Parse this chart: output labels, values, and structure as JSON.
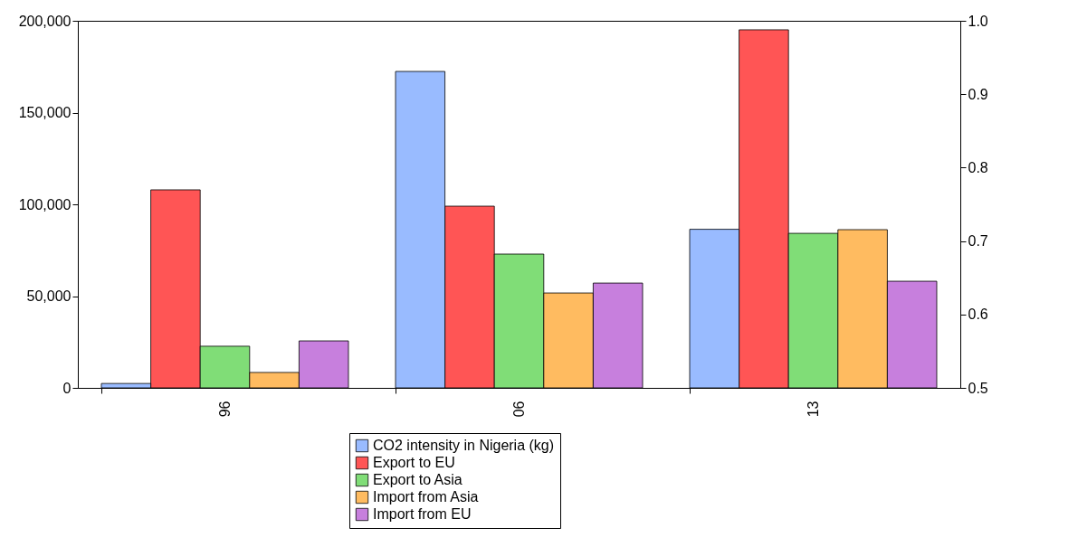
{
  "chart_data": {
    "type": "bar",
    "categories": [
      "96",
      "06",
      "13"
    ],
    "series": [
      {
        "name": "CO2 intensity in Nigeria (kg)",
        "color": "#99bbff",
        "axis": "y2",
        "values": [
          0.506,
          0.931,
          0.716
        ]
      },
      {
        "name": "Export to EU",
        "color": "#ff5555",
        "values": [
          107900,
          99000,
          195100
        ]
      },
      {
        "name": "Export to Asia",
        "color": "#80dd77",
        "values": [
          22700,
          72900,
          84200
        ]
      },
      {
        "name": "Import from Asia",
        "color": "#ffbb60",
        "values": [
          8400,
          51700,
          86200
        ]
      },
      {
        "name": "Import from EU",
        "color": "#c77fdd",
        "values": [
          25600,
          57100,
          58100
        ]
      }
    ],
    "ylim": [
      0,
      200000
    ],
    "yticks": [
      0,
      {
        "value": 50000,
        "label": "50,000"
      },
      {
        "value": 100000,
        "label": "100,000"
      },
      {
        "value": 150000,
        "label": "150,000"
      },
      {
        "value": 200000,
        "label": "200,000"
      }
    ],
    "y2lim": [
      0.5,
      1.0
    ],
    "y2ticks": [
      0.5,
      0.6,
      0.7,
      0.8,
      0.9,
      {
        "value": 1.0,
        "label": "1.0"
      }
    ],
    "grid": false,
    "legend": "bottom"
  }
}
